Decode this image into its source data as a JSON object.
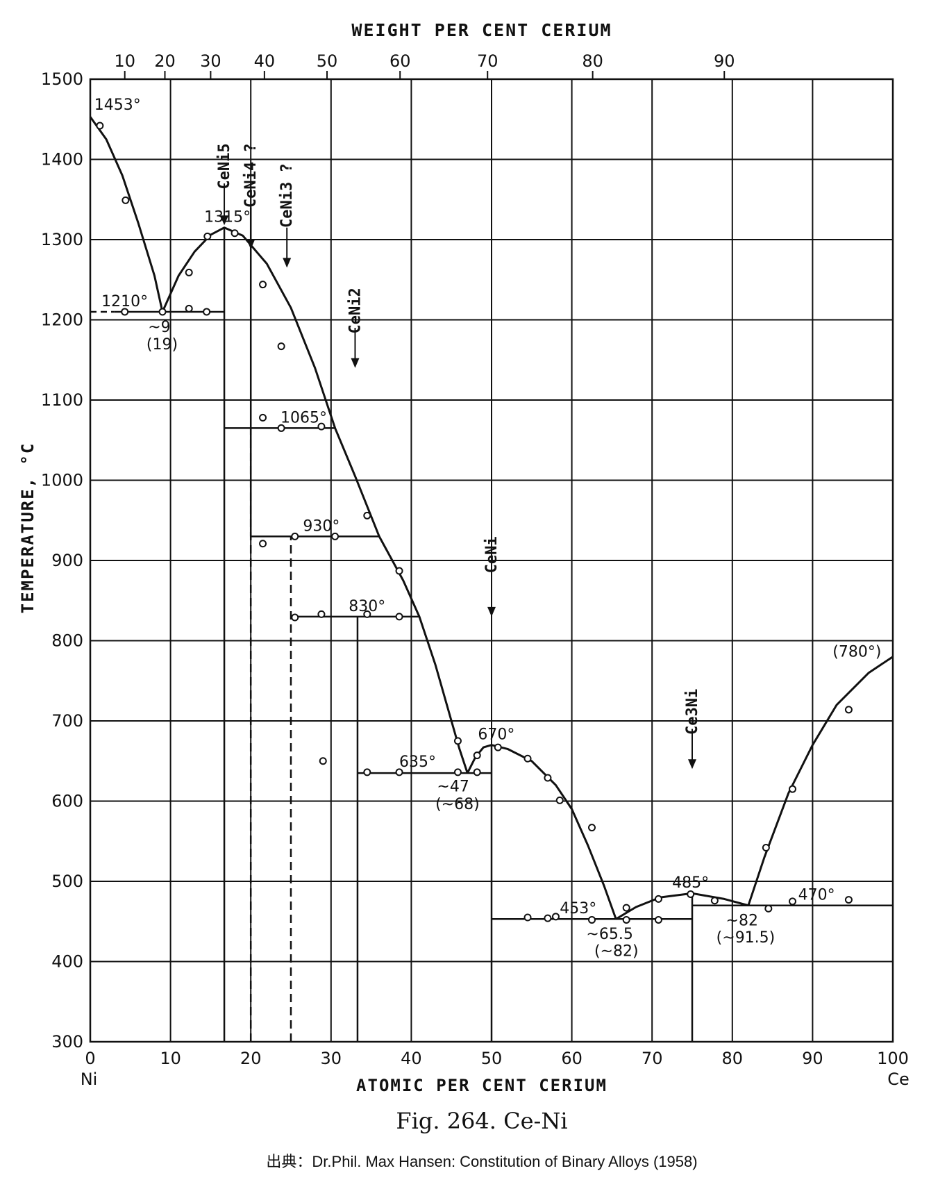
{
  "chart_data": {
    "type": "line",
    "title_top": "WEIGHT PER CENT CERIUM",
    "xlabel": "ATOMIC PER CENT CERIUM",
    "ylabel": "TEMPERATURE, °C",
    "xlim": [
      0,
      100
    ],
    "ylim": [
      300,
      1500
    ],
    "x_ticks": [
      0,
      10,
      20,
      30,
      40,
      50,
      60,
      70,
      80,
      90,
      100
    ],
    "y_ticks": [
      300,
      400,
      500,
      600,
      700,
      800,
      900,
      1000,
      1100,
      1200,
      1300,
      1400,
      1500
    ],
    "x_endpoints": {
      "left": "Ni",
      "right": "Ce"
    },
    "weight_ticks": [
      {
        "label": "10",
        "at": 4.3
      },
      {
        "label": "20",
        "at": 9.3
      },
      {
        "label": "30",
        "at": 15
      },
      {
        "label": "40",
        "at": 21.7
      },
      {
        "label": "50",
        "at": 29.5
      },
      {
        "label": "60",
        "at": 38.6
      },
      {
        "label": "70",
        "at": 49.5
      },
      {
        "label": "80",
        "at": 62.6
      },
      {
        "label": "90",
        "at": 79
      }
    ],
    "grid": true,
    "liquidus": [
      {
        "name": "Ni-CeNi5",
        "points": [
          [
            0,
            1453
          ],
          [
            2,
            1425
          ],
          [
            4,
            1380
          ],
          [
            6,
            1320
          ],
          [
            8,
            1255
          ],
          [
            9,
            1210
          ]
        ]
      },
      {
        "name": "CeNi5 dome",
        "points": [
          [
            9,
            1210
          ],
          [
            11,
            1255
          ],
          [
            13,
            1285
          ],
          [
            15,
            1306
          ],
          [
            16.7,
            1315
          ],
          [
            19,
            1305
          ],
          [
            22,
            1270
          ],
          [
            25,
            1215
          ],
          [
            28,
            1140
          ],
          [
            30.5,
            1065
          ],
          [
            33,
            1005
          ],
          [
            36,
            930
          ],
          [
            39,
            875
          ],
          [
            41,
            830
          ],
          [
            43,
            770
          ],
          [
            45,
            700
          ],
          [
            46,
            665
          ],
          [
            47,
            635
          ]
        ]
      },
      {
        "name": "CeNi dome",
        "points": [
          [
            47,
            635
          ],
          [
            48,
            655
          ],
          [
            49,
            667
          ],
          [
            50,
            670
          ],
          [
            52,
            665
          ],
          [
            55,
            650
          ],
          [
            58,
            620
          ],
          [
            60,
            590
          ],
          [
            62,
            545
          ],
          [
            64,
            495
          ],
          [
            65.5,
            453
          ]
        ]
      },
      {
        "name": "Ce3Ni dome",
        "points": [
          [
            65.5,
            453
          ],
          [
            68,
            468
          ],
          [
            71,
            480
          ],
          [
            75,
            485
          ],
          [
            79,
            478
          ],
          [
            82,
            470
          ]
        ]
      },
      {
        "name": "Ce side",
        "points": [
          [
            82,
            470
          ],
          [
            84,
            530
          ],
          [
            87,
            610
          ],
          [
            90,
            670
          ],
          [
            93,
            720
          ],
          [
            97,
            760
          ],
          [
            100,
            780
          ]
        ]
      }
    ],
    "solidus": [
      {
        "points": [
          [
            0,
            1210
          ],
          [
            9,
            1210
          ],
          [
            16.7,
            1210
          ]
        ],
        "dashed_segment": [
          0,
          3
        ]
      },
      {
        "points": [
          [
            16.7,
            1065
          ],
          [
            30.5,
            1065
          ]
        ]
      },
      {
        "points": [
          [
            20,
            930
          ],
          [
            36,
            930
          ]
        ]
      },
      {
        "points": [
          [
            25,
            830
          ],
          [
            41,
            830
          ]
        ]
      },
      {
        "points": [
          [
            33.3,
            635
          ],
          [
            50,
            635
          ]
        ]
      },
      {
        "points": [
          [
            50,
            453
          ],
          [
            75,
            453
          ]
        ]
      },
      {
        "points": [
          [
            75,
            470
          ],
          [
            100,
            470
          ]
        ]
      }
    ],
    "compound_lines": [
      {
        "x": 16.7,
        "from": 300,
        "to": 1315,
        "style": "solid"
      },
      {
        "x": 20,
        "from": 300,
        "to": 1065,
        "style": "dashed"
      },
      {
        "x": 20,
        "from": 930,
        "to": 1340,
        "style": "solid"
      },
      {
        "x": 25,
        "from": 300,
        "to": 930,
        "style": "dashed"
      },
      {
        "x": 33.3,
        "from": 300,
        "to": 830,
        "style": "solid"
      },
      {
        "x": 50,
        "from": 300,
        "to": 670,
        "style": "solid"
      },
      {
        "x": 75,
        "from": 300,
        "to": 485,
        "style": "solid"
      }
    ],
    "data_points": [
      [
        1.2,
        1442
      ],
      [
        4.4,
        1349
      ],
      [
        4.3,
        1210
      ],
      [
        9,
        1210
      ],
      [
        12.3,
        1259
      ],
      [
        12.3,
        1214
      ],
      [
        14.5,
        1210
      ],
      [
        14.6,
        1304
      ],
      [
        18,
        1308
      ],
      [
        21.5,
        1244
      ],
      [
        23.8,
        1167
      ],
      [
        21.5,
        1078
      ],
      [
        23.8,
        1065
      ],
      [
        28.8,
        1067
      ],
      [
        21.5,
        921
      ],
      [
        25.5,
        930
      ],
      [
        30.5,
        930
      ],
      [
        34.5,
        956
      ],
      [
        38.5,
        887
      ],
      [
        25.5,
        829
      ],
      [
        28.8,
        833
      ],
      [
        34.5,
        833
      ],
      [
        38.5,
        830
      ],
      [
        29,
        650
      ],
      [
        34.5,
        636
      ],
      [
        38.5,
        636
      ],
      [
        45.8,
        675
      ],
      [
        45.8,
        636
      ],
      [
        48.2,
        657
      ],
      [
        48.2,
        636
      ],
      [
        50.8,
        667
      ],
      [
        54.5,
        653
      ],
      [
        57,
        629
      ],
      [
        58.5,
        601
      ],
      [
        62.5,
        567
      ],
      [
        54.5,
        455
      ],
      [
        57,
        454
      ],
      [
        58,
        456
      ],
      [
        62.5,
        452
      ],
      [
        66.8,
        467
      ],
      [
        66.8,
        452
      ],
      [
        70.8,
        478
      ],
      [
        70.8,
        452
      ],
      [
        74.8,
        484
      ],
      [
        77.8,
        476
      ],
      [
        84.5,
        466
      ],
      [
        87.5,
        615
      ],
      [
        84.2,
        542
      ],
      [
        87.5,
        475
      ],
      [
        94.5,
        714
      ],
      [
        94.5,
        477
      ]
    ],
    "phases": [
      {
        "label": "CeNi5",
        "x": 16.7,
        "label_y": 1420,
        "arrow_from": 1370,
        "arrow_to": 1318
      },
      {
        "label": "CeNi4 ?",
        "x": 20,
        "label_y": 1420,
        "arrow_from": 1370,
        "arrow_to": 1288
      },
      {
        "label": "CeNi3 ?",
        "x": 24.5,
        "label_y": 1395,
        "arrow_from": 1315,
        "arrow_to": 1265
      },
      {
        "label": "CeNi2",
        "x": 33,
        "label_y": 1240,
        "arrow_from": 1190,
        "arrow_to": 1140
      },
      {
        "label": "CeNi",
        "x": 50,
        "label_y": 930,
        "arrow_from": 885,
        "arrow_to": 830
      },
      {
        "label": "Ce3Ni",
        "x": 75,
        "label_y": 740,
        "arrow_from": 690,
        "arrow_to": 640
      }
    ],
    "annotations": [
      {
        "text": "1453°",
        "x": 0.5,
        "y": 1462
      },
      {
        "text": "1315°",
        "x": 14.2,
        "y": 1322
      },
      {
        "text": "1210°",
        "x": 1.4,
        "y": 1217
      },
      {
        "text": "~9",
        "x": 7.2,
        "y": 1185
      },
      {
        "text": "(19)",
        "x": 7.0,
        "y": 1163
      },
      {
        "text": "1065°",
        "x": 23.7,
        "y": 1072
      },
      {
        "text": "930°",
        "x": 26.5,
        "y": 937
      },
      {
        "text": "830°",
        "x": 32.2,
        "y": 837
      },
      {
        "text": "635°",
        "x": 38.5,
        "y": 643
      },
      {
        "text": "~47",
        "x": 43.2,
        "y": 612
      },
      {
        "text": "(~68)",
        "x": 43.0,
        "y": 590
      },
      {
        "text": "670°",
        "x": 48.3,
        "y": 677
      },
      {
        "text": "453°",
        "x": 58.5,
        "y": 460
      },
      {
        "text": "~65.5",
        "x": 61.8,
        "y": 428
      },
      {
        "text": "(~82)",
        "x": 62.8,
        "y": 407
      },
      {
        "text": "485°",
        "x": 72.5,
        "y": 492
      },
      {
        "text": "~82",
        "x": 79.2,
        "y": 445
      },
      {
        "text": "(~91.5)",
        "x": 78.0,
        "y": 424
      },
      {
        "text": "470°",
        "x": 88.2,
        "y": 477
      },
      {
        "text": "(780°)",
        "x": 92.5,
        "y": 780
      }
    ]
  },
  "caption": "Fig. 264. Ce-Ni",
  "source": "出典：Dr.Phil. Max Hansen: Constitution of Binary Alloys (1958)"
}
